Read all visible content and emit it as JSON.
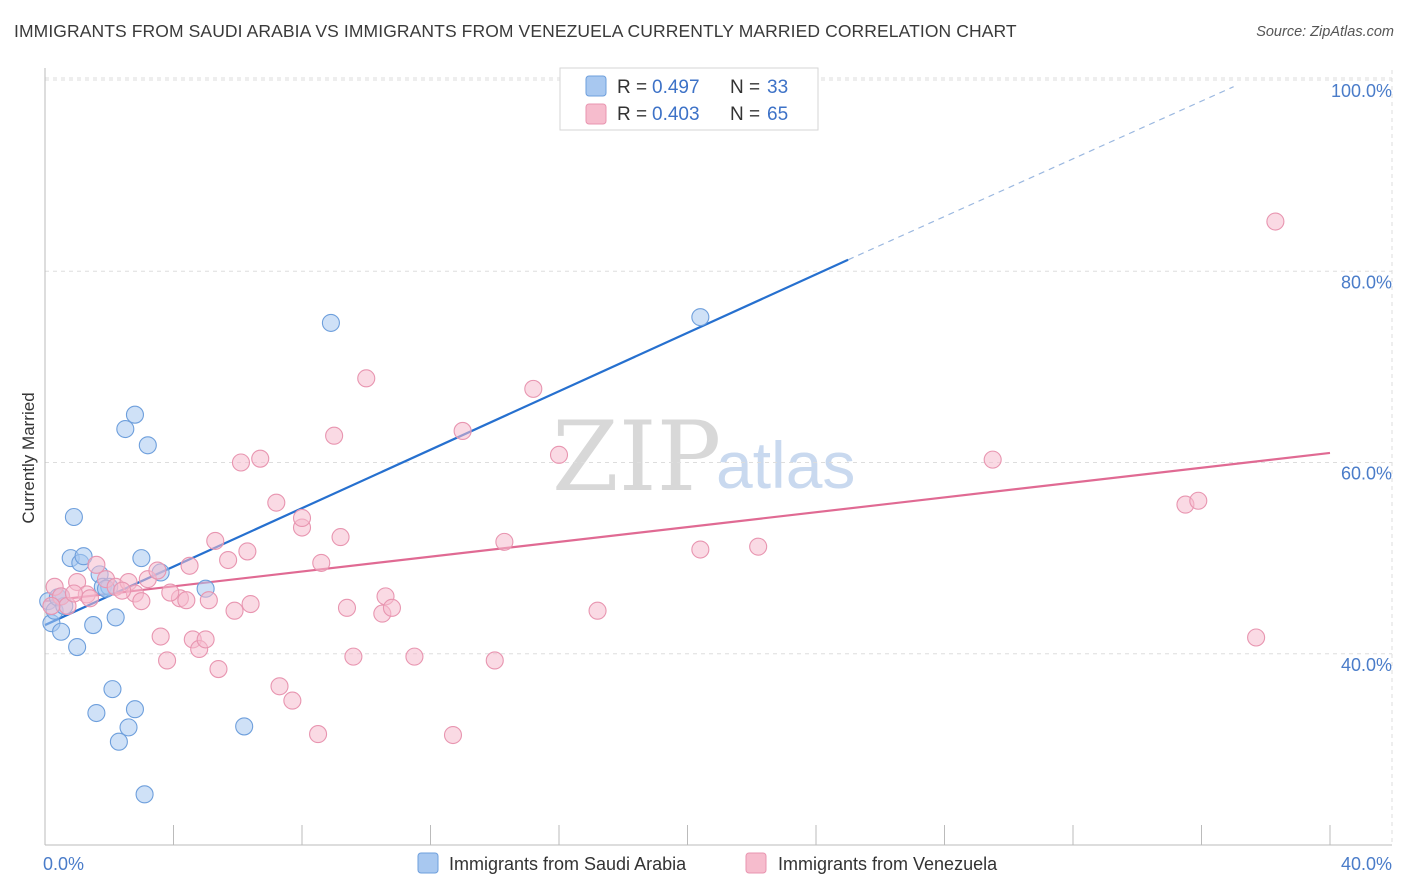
{
  "title": "IMMIGRANTS FROM SAUDI ARABIA VS IMMIGRANTS FROM VENEZUELA CURRENTLY MARRIED CORRELATION CHART",
  "source": "Source: ZipAtlas.com",
  "watermark": {
    "zip": "ZIP",
    "atlas": "atlas"
  },
  "legend": {
    "r_label": "R =",
    "n_label": "N =",
    "rows": [
      {
        "r": "0.497",
        "n": "33"
      },
      {
        "r": "0.403",
        "n": "65"
      }
    ]
  },
  "colors": {
    "blue_fill": "#a8c8f0",
    "blue_stroke": "#6e9fdc",
    "blue_line": "#2670cf",
    "pink_fill": "#f6bccd",
    "pink_stroke": "#e895b0",
    "pink_line": "#e06a93",
    "tick_label": "#4a7cc9",
    "grid": "#dddddd"
  },
  "chart_data": {
    "type": "scatter",
    "xlabel": "",
    "ylabel": "Currently Married",
    "xlim": [
      0,
      40
    ],
    "ylim": [
      20,
      100
    ],
    "x_tick_labels": [
      "0.0%",
      "40.0%"
    ],
    "y_ticks": [
      40,
      60,
      80,
      100
    ],
    "y_tick_labels": [
      "40.0%",
      "60.0%",
      "80.0%",
      "100.0%"
    ],
    "grid": true,
    "legend_position": "top-center",
    "series": [
      {
        "name": "Immigrants from Saudi Arabia",
        "color": "blue",
        "trend": {
          "x0": 0,
          "y0": 43.0,
          "x1": 25.0,
          "y1": 81.2,
          "dashed_to": {
            "x": 37.0,
            "y": 99.3
          }
        },
        "points": [
          [
            0.1,
            45.5
          ],
          [
            0.2,
            43.2
          ],
          [
            0.3,
            44.5
          ],
          [
            0.4,
            45.9
          ],
          [
            0.5,
            42.3
          ],
          [
            0.6,
            45.0
          ],
          [
            0.9,
            54.3
          ],
          [
            0.8,
            50.0
          ],
          [
            1.0,
            40.7
          ],
          [
            1.1,
            49.5
          ],
          [
            1.2,
            50.2
          ],
          [
            1.5,
            43.0
          ],
          [
            1.7,
            48.3
          ],
          [
            1.8,
            47.0
          ],
          [
            2.0,
            47.0
          ],
          [
            1.6,
            33.8
          ],
          [
            2.1,
            36.3
          ],
          [
            2.2,
            43.8
          ],
          [
            2.5,
            63.5
          ],
          [
            2.8,
            65.0
          ],
          [
            3.2,
            61.8
          ],
          [
            3.0,
            50.0
          ],
          [
            3.6,
            48.5
          ],
          [
            2.6,
            32.3
          ],
          [
            2.3,
            30.8
          ],
          [
            2.8,
            34.2
          ],
          [
            3.1,
            25.3
          ],
          [
            5.0,
            46.8
          ],
          [
            6.2,
            32.4
          ],
          [
            8.9,
            74.6
          ],
          [
            20.4,
            75.2
          ],
          [
            0.5,
            46.0
          ],
          [
            1.9,
            46.8
          ]
        ]
      },
      {
        "name": "Immigrants from Venezuela",
        "color": "pink",
        "trend": {
          "x0": 0,
          "y0": 45.5,
          "x1": 40,
          "y1": 61.0
        },
        "points": [
          [
            0.3,
            47.0
          ],
          [
            0.5,
            46.0
          ],
          [
            0.7,
            45.0
          ],
          [
            1.0,
            47.5
          ],
          [
            1.3,
            46.2
          ],
          [
            1.6,
            49.3
          ],
          [
            1.9,
            47.8
          ],
          [
            2.2,
            47.0
          ],
          [
            2.6,
            47.5
          ],
          [
            2.8,
            46.3
          ],
          [
            3.0,
            45.5
          ],
          [
            3.2,
            47.8
          ],
          [
            3.5,
            48.7
          ],
          [
            3.6,
            41.8
          ],
          [
            3.8,
            39.3
          ],
          [
            4.2,
            45.8
          ],
          [
            4.4,
            45.6
          ],
          [
            4.5,
            49.2
          ],
          [
            4.6,
            41.5
          ],
          [
            4.8,
            40.5
          ],
          [
            5.0,
            41.5
          ],
          [
            5.1,
            45.6
          ],
          [
            5.3,
            51.8
          ],
          [
            5.4,
            38.4
          ],
          [
            5.7,
            49.8
          ],
          [
            5.9,
            44.5
          ],
          [
            6.1,
            60.0
          ],
          [
            6.3,
            50.7
          ],
          [
            6.4,
            45.2
          ],
          [
            6.7,
            60.4
          ],
          [
            7.2,
            55.8
          ],
          [
            7.3,
            36.6
          ],
          [
            7.7,
            35.1
          ],
          [
            8.0,
            53.2
          ],
          [
            8.0,
            54.2
          ],
          [
            8.5,
            31.6
          ],
          [
            8.6,
            49.5
          ],
          [
            9.0,
            62.8
          ],
          [
            9.2,
            52.2
          ],
          [
            9.4,
            44.8
          ],
          [
            9.6,
            39.7
          ],
          [
            10.0,
            68.8
          ],
          [
            10.5,
            44.2
          ],
          [
            10.6,
            46.0
          ],
          [
            10.8,
            44.8
          ],
          [
            11.5,
            39.7
          ],
          [
            12.7,
            31.5
          ],
          [
            13.0,
            63.3
          ],
          [
            14.0,
            39.3
          ],
          [
            14.3,
            51.7
          ],
          [
            15.2,
            67.7
          ],
          [
            16.0,
            60.8
          ],
          [
            17.2,
            44.5
          ],
          [
            20.4,
            50.9
          ],
          [
            22.2,
            51.2
          ],
          [
            29.5,
            60.3
          ],
          [
            35.5,
            55.6
          ],
          [
            35.9,
            56.0
          ],
          [
            37.7,
            41.7
          ],
          [
            38.3,
            85.2
          ],
          [
            1.4,
            45.8
          ],
          [
            0.9,
            46.3
          ],
          [
            2.4,
            46.6
          ],
          [
            3.9,
            46.4
          ],
          [
            0.2,
            45.0
          ]
        ]
      }
    ]
  },
  "bottom_legend": [
    {
      "label": "Immigrants from Saudi Arabia"
    },
    {
      "label": "Immigrants from Venezuela"
    }
  ]
}
